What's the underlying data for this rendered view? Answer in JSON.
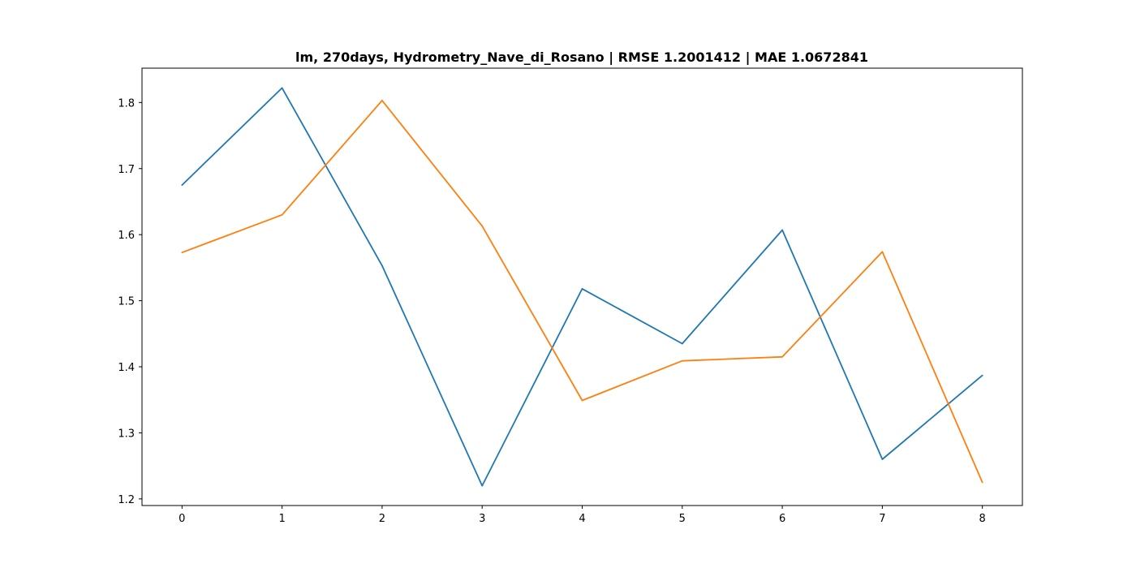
{
  "chart_data": {
    "type": "line",
    "title": "lm, 270days, Hydrometry_Nave_di_Rosano | RMSE 1.2001412 | MAE 1.0672841",
    "xlabel": "",
    "ylabel": "",
    "x": [
      0,
      1,
      2,
      3,
      4,
      5,
      6,
      7,
      8
    ],
    "xlim": [
      -0.4,
      8.4
    ],
    "ylim": [
      1.19,
      1.852
    ],
    "xticks": [
      "0",
      "1",
      "2",
      "3",
      "4",
      "5",
      "6",
      "7",
      "8"
    ],
    "yticks": [
      "1.2",
      "1.3",
      "1.4",
      "1.5",
      "1.6",
      "1.7",
      "1.8"
    ],
    "grid": false,
    "series": [
      {
        "color": "#1f77b4",
        "values": [
          1.675,
          1.822,
          1.553,
          1.22,
          1.518,
          1.435,
          1.607,
          1.26,
          1.387
        ]
      },
      {
        "color": "#ff7f0e",
        "values": [
          1.573,
          1.63,
          1.803,
          1.613,
          1.349,
          1.409,
          1.415,
          1.574,
          1.225
        ]
      }
    ]
  }
}
